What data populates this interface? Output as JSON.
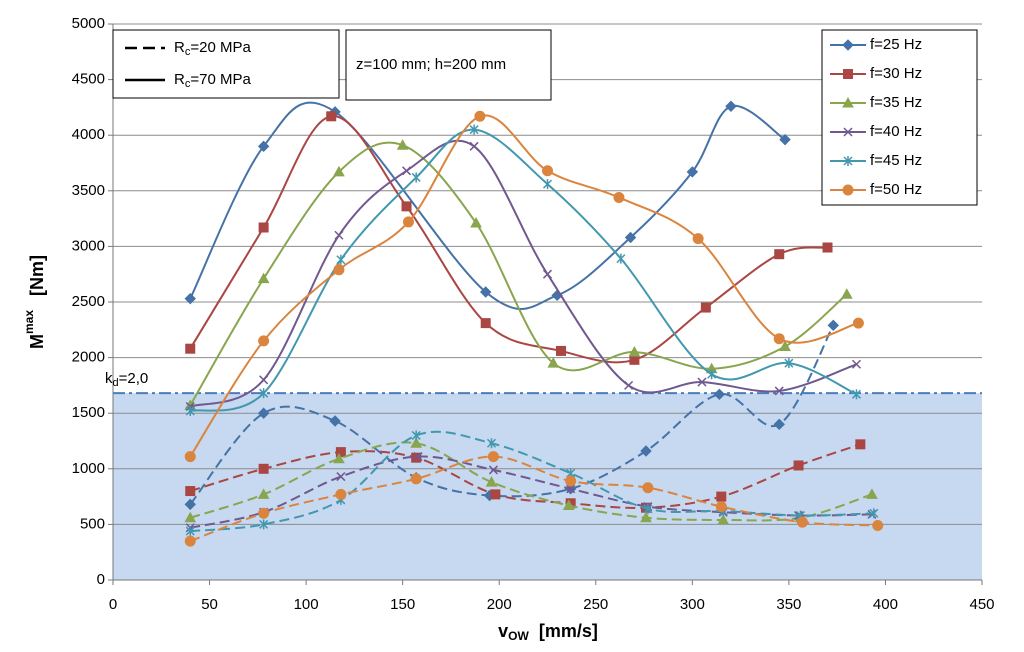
{
  "chart_data": {
    "type": "line",
    "xlim": [
      0,
      450
    ],
    "xticks": [
      0,
      50,
      100,
      150,
      200,
      250,
      300,
      350,
      400,
      450
    ],
    "ylim": [
      0,
      5000
    ],
    "yticks": [
      0,
      500,
      1000,
      1500,
      2000,
      2500,
      3000,
      3500,
      4000,
      4500,
      5000
    ],
    "grid": true,
    "x_label": {
      "main": "v",
      "sub": "OW",
      "unit": "[mm/s]"
    },
    "y_label": {
      "main": "M",
      "sup": "max",
      "unit": "[Nm]"
    },
    "annotation": "z=100 mm; h=200 mm",
    "threshold": {
      "value": 1680,
      "main": "k",
      "sub": "d",
      "rest": "=2,0",
      "color": "#4a7ebb",
      "fill": "#c6d9f0"
    },
    "line_styles": [
      {
        "main": "R",
        "sub": "c",
        "rest": "=20 MPa",
        "style": "dashed"
      },
      {
        "main": "R",
        "sub": "c",
        "rest": "=70 MPa",
        "style": "solid"
      }
    ],
    "legend": "upper right",
    "series": [
      {
        "name": "f=25 Hz",
        "color": "#4572a7",
        "marker": "diamond",
        "solid": {
          "x": [
            40,
            78,
            115,
            193,
            230,
            268,
            300,
            320,
            348
          ],
          "values": [
            2530,
            3900,
            4210,
            2590,
            2560,
            3080,
            3670,
            4260,
            3960
          ]
        },
        "dashed": {
          "x": [
            40,
            78,
            115,
            157,
            195,
            237,
            276,
            314,
            345,
            373
          ],
          "values": [
            680,
            1500,
            1430,
            920,
            760,
            820,
            1160,
            1670,
            1400,
            2290
          ]
        }
      },
      {
        "name": "f=30 Hz",
        "color": "#aa4643",
        "marker": "square",
        "solid": {
          "x": [
            40,
            78,
            113,
            152,
            193,
            232,
            270,
            307,
            345,
            370
          ],
          "values": [
            2080,
            3170,
            4170,
            3360,
            2310,
            2060,
            1980,
            2450,
            2930,
            2990
          ]
        },
        "dashed": {
          "x": [
            40,
            78,
            118,
            157,
            198,
            237,
            276,
            315,
            355,
            387
          ],
          "values": [
            800,
            1000,
            1150,
            1100,
            770,
            690,
            650,
            750,
            1030,
            1220
          ]
        }
      },
      {
        "name": "f=35 Hz",
        "color": "#89a54e",
        "marker": "triangle",
        "solid": {
          "x": [
            40,
            78,
            117,
            150,
            188,
            228,
            270,
            310,
            348,
            380
          ],
          "values": [
            1570,
            2710,
            3670,
            3910,
            3210,
            1950,
            2050,
            1900,
            2100,
            2570
          ]
        },
        "dashed": {
          "x": [
            40,
            78,
            117,
            157,
            196,
            236,
            276,
            316,
            356,
            393
          ],
          "values": [
            560,
            770,
            1090,
            1230,
            880,
            670,
            560,
            540,
            560,
            770
          ]
        }
      },
      {
        "name": "f=40 Hz",
        "color": "#71588f",
        "marker": "x",
        "solid": {
          "x": [
            40,
            78,
            117,
            152,
            187,
            225,
            267,
            305,
            345,
            385
          ],
          "values": [
            1560,
            1800,
            3100,
            3680,
            3900,
            2750,
            1750,
            1780,
            1700,
            1940
          ]
        },
        "dashed": {
          "x": [
            40,
            78,
            118,
            158,
            197,
            237,
            277,
            316,
            355,
            393
          ],
          "values": [
            470,
            610,
            930,
            1110,
            990,
            820,
            660,
            610,
            580,
            590
          ]
        }
      },
      {
        "name": "f=45 Hz",
        "color": "#4198af",
        "marker": "star",
        "solid": {
          "x": [
            40,
            78,
            118,
            157,
            187,
            225,
            263,
            310,
            350,
            385
          ],
          "values": [
            1520,
            1680,
            2880,
            3620,
            4050,
            3560,
            2890,
            1850,
            1950,
            1670
          ]
        },
        "dashed": {
          "x": [
            40,
            78,
            118,
            157,
            196,
            237,
            277,
            316,
            356,
            394
          ],
          "values": [
            440,
            500,
            720,
            1300,
            1230,
            960,
            640,
            620,
            580,
            600
          ]
        }
      },
      {
        "name": "f=50 Hz",
        "color": "#db843d",
        "marker": "circle",
        "solid": {
          "x": [
            40,
            78,
            117,
            153,
            190,
            225,
            262,
            303,
            345,
            386
          ],
          "values": [
            1110,
            2150,
            2790,
            3220,
            4170,
            3680,
            3440,
            3070,
            2170,
            2310
          ]
        },
        "dashed": {
          "x": [
            40,
            78,
            118,
            157,
            197,
            237,
            277,
            315,
            357,
            396
          ],
          "values": [
            350,
            600,
            770,
            910,
            1110,
            890,
            830,
            660,
            520,
            490
          ]
        }
      }
    ]
  }
}
